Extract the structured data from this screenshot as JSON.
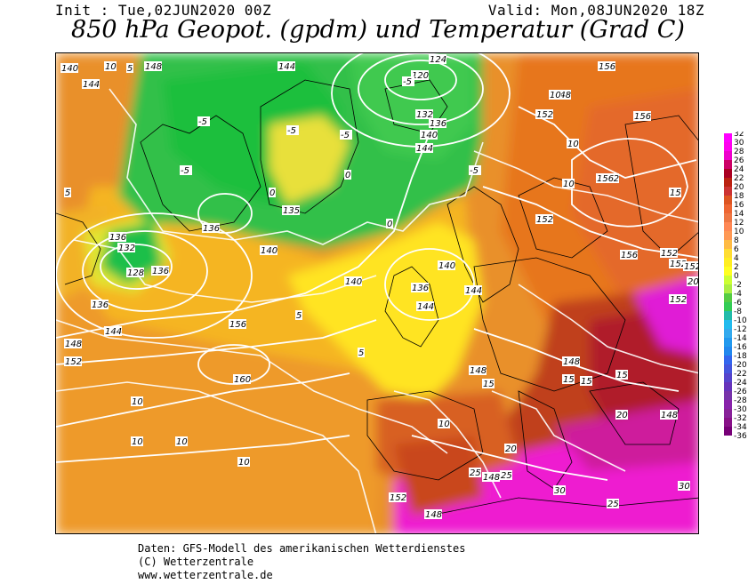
{
  "header": {
    "init": "Init : Tue,02JUN2020 00Z",
    "valid": "Valid: Mon,08JUN2020 18Z",
    "title": "850 hPa Geopot. (gpdm) und Temperatur (Grad C)"
  },
  "footer": {
    "line1": "Daten: GFS-Modell des amerikanischen Wetterdienstes",
    "line2": "(C) Wetterzentrale",
    "line3": "www.wetterzentrale.de"
  },
  "legend": {
    "ticks": [
      "32",
      "30",
      "28",
      "26",
      "24",
      "22",
      "20",
      "18",
      "16",
      "14",
      "12",
      "10",
      "8",
      "6",
      "4",
      "2",
      "0",
      "-2",
      "-4",
      "-6",
      "-8",
      "-10",
      "-12",
      "-14",
      "-16",
      "-18",
      "-20",
      "-22",
      "-24",
      "-26",
      "-28",
      "-30",
      "-32",
      "-34",
      "-36"
    ],
    "colors": [
      "#f0f",
      "#f0e",
      "#e0c",
      "#c06",
      "#a02",
      "#b21",
      "#c33",
      "#d52",
      "#e63",
      "#e74",
      "#f85",
      "#f95",
      "#fb4",
      "#fd3",
      "#fe2",
      "#ff2",
      "#cf3",
      "#ae4",
      "#5c4",
      "#3c5",
      "#2ba",
      "#2be",
      "#3ae",
      "#29e",
      "#28e",
      "#36e",
      "#45d",
      "#54c",
      "#63b",
      "#73a",
      "#82a",
      "#829",
      "#818",
      "#707"
    ]
  },
  "geopot_labels": [
    {
      "text": "140"
    },
    {
      "text": "144"
    },
    {
      "text": "148"
    },
    {
      "text": "144"
    },
    {
      "text": "120"
    },
    {
      "text": "124"
    },
    {
      "text": "132"
    },
    {
      "text": "136"
    },
    {
      "text": "140"
    },
    {
      "text": "144"
    },
    {
      "text": "148"
    },
    {
      "text": "152"
    },
    {
      "text": "156"
    },
    {
      "text": "156"
    },
    {
      "text": "152"
    },
    {
      "text": "152"
    },
    {
      "text": "152"
    },
    {
      "text": "136"
    },
    {
      "text": "140"
    },
    {
      "text": "136"
    },
    {
      "text": "132"
    },
    {
      "text": "128"
    },
    {
      "text": "136"
    },
    {
      "text": "144"
    },
    {
      "text": "148"
    },
    {
      "text": "152"
    },
    {
      "text": "156"
    },
    {
      "text": "160"
    },
    {
      "text": "140"
    },
    {
      "text": "144"
    },
    {
      "text": "136"
    },
    {
      "text": "140"
    },
    {
      "text": "144"
    },
    {
      "text": "148"
    },
    {
      "text": "148"
    },
    {
      "text": "148"
    },
    {
      "text": "152"
    },
    {
      "text": "148"
    },
    {
      "text": "152"
    },
    {
      "text": "156"
    },
    {
      "text": "156"
    },
    {
      "text": "148"
    },
    {
      "text": "152"
    },
    {
      "text": "152"
    },
    {
      "text": "136"
    },
    {
      "text": "135"
    }
  ],
  "temp_labels": [
    {
      "text": "10"
    },
    {
      "text": "-5"
    },
    {
      "text": "-5"
    },
    {
      "text": "-5"
    },
    {
      "text": "0"
    },
    {
      "text": "-5"
    },
    {
      "text": "5"
    },
    {
      "text": "10"
    },
    {
      "text": "10"
    },
    {
      "text": "10"
    },
    {
      "text": "10"
    },
    {
      "text": "10"
    },
    {
      "text": "15"
    },
    {
      "text": "15"
    },
    {
      "text": "15"
    },
    {
      "text": "20"
    },
    {
      "text": "20"
    },
    {
      "text": "25"
    },
    {
      "text": "25"
    },
    {
      "text": "30"
    },
    {
      "text": "30"
    },
    {
      "text": "10"
    },
    {
      "text": "10"
    },
    {
      "text": "10"
    },
    {
      "text": "5"
    },
    {
      "text": "5"
    },
    {
      "text": "0"
    },
    {
      "text": "0"
    },
    {
      "text": "-5"
    },
    {
      "text": "-5"
    },
    {
      "text": "5"
    },
    {
      "text": "15"
    },
    {
      "text": "15"
    },
    {
      "text": "20"
    },
    {
      "text": "25"
    }
  ]
}
